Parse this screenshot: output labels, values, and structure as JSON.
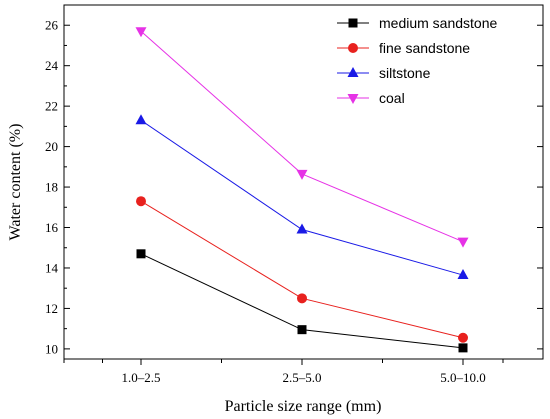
{
  "chart_data": {
    "type": "line",
    "xlabel": "Particle size range (mm)",
    "ylabel": "Water content (%)",
    "categories": [
      "1.0–2.5",
      "2.5–5.0",
      "5.0–10.0"
    ],
    "ylim": [
      9.5,
      27
    ],
    "yticks": [
      10,
      12,
      14,
      16,
      18,
      20,
      22,
      24,
      26
    ],
    "grid": false,
    "legend_position": "top-right",
    "series": [
      {
        "name": "medium sandstone",
        "color": "#000000",
        "marker": "square",
        "values": [
          14.7,
          10.95,
          10.05
        ]
      },
      {
        "name": "fine sandstone",
        "color": "#e8211e",
        "marker": "circle",
        "values": [
          17.3,
          12.5,
          10.55
        ]
      },
      {
        "name": "siltstone",
        "color": "#1a1ae6",
        "marker": "triangle-up",
        "values": [
          21.3,
          15.9,
          13.65
        ]
      },
      {
        "name": "coal",
        "color": "#e632e6",
        "marker": "triangle-down",
        "values": [
          25.7,
          18.65,
          15.3
        ]
      }
    ]
  }
}
